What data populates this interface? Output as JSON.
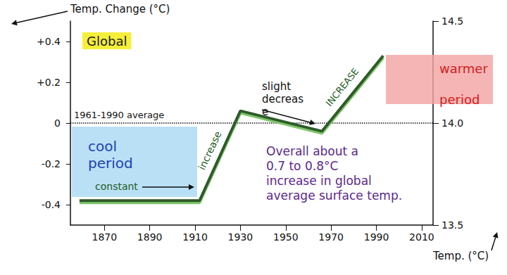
{
  "chart_data": {
    "type": "line",
    "title": "Global",
    "x": [
      1859,
      1912,
      1930,
      1966,
      1993
    ],
    "values": [
      -0.38,
      -0.38,
      0.06,
      -0.04,
      0.33
    ],
    "color": "#2f5a2a",
    "xlim": [
      1855,
      2015
    ],
    "xticks": [
      1870,
      1890,
      1910,
      1930,
      1950,
      1970,
      1990,
      2010
    ],
    "ylim": [
      -0.5,
      0.5
    ],
    "yticks": [
      -0.4,
      -0.2,
      0,
      {
        "value": 0.2,
        "label": "+0.2"
      },
      {
        "value": 0.4,
        "label": "+0.4"
      }
    ],
    "y2lim": [
      13.5,
      14.5
    ],
    "y2ticks": [
      13.5,
      {
        "value": 14,
        "label": "14.0"
      },
      14.5
    ],
    "y_label": "Temp. Change (°C)",
    "y2_label": "Temp. (°C)",
    "reference_line": {
      "y": 0,
      "label": "1961-1990 average"
    },
    "annotations": {
      "cool": "cool period",
      "warm": "warmer period",
      "constant": "constant",
      "increase_1": "increase",
      "decrease": "slight decrease",
      "increase_2": "INCREASE",
      "summary": [
        "Overall about a",
        "0.7 to 0.8°C",
        "increase in global",
        "average surface temp."
      ]
    },
    "grid": false
  }
}
